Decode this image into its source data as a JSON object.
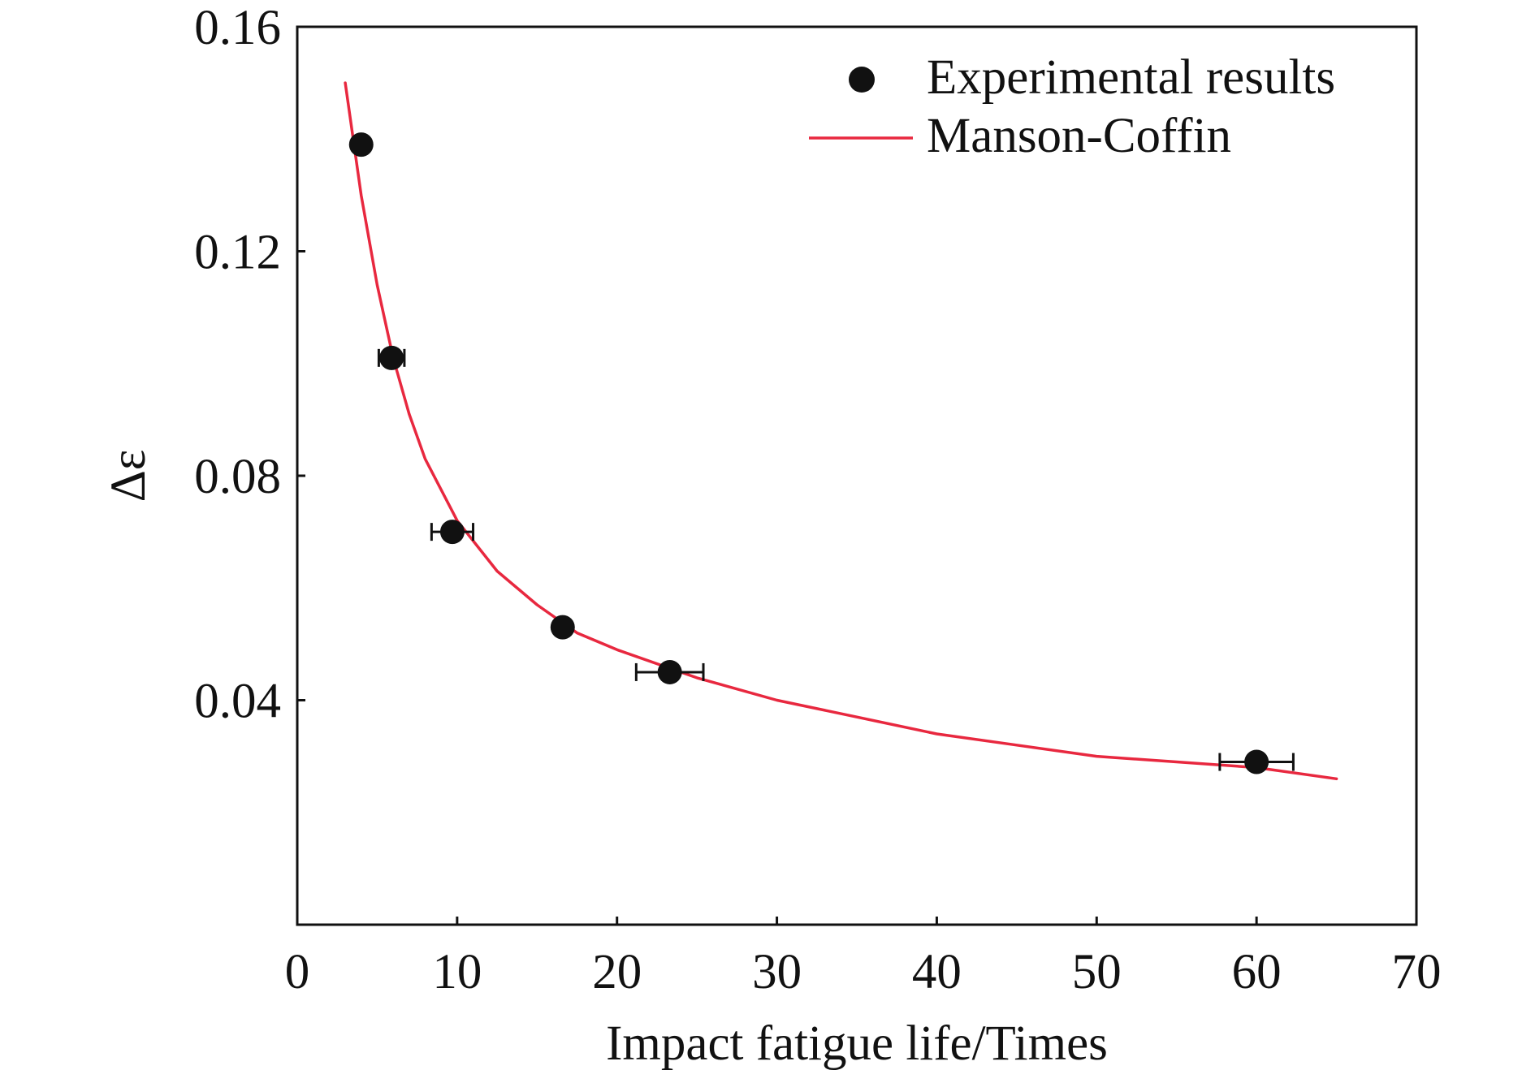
{
  "chart_data": {
    "type": "scatter",
    "title": "",
    "xlabel": "Impact fatigue life/Times",
    "ylabel": "Δε",
    "xlim": [
      0,
      70
    ],
    "ylim": [
      0,
      0.16
    ],
    "x_ticks": [
      {
        "value": 0,
        "label": "0"
      },
      {
        "value": 10,
        "label": "10"
      },
      {
        "value": 20,
        "label": "20"
      },
      {
        "value": 30,
        "label": "30"
      },
      {
        "value": 40,
        "label": "40"
      },
      {
        "value": 50,
        "label": "50"
      },
      {
        "value": 60,
        "label": "60"
      },
      {
        "value": 70,
        "label": "70"
      }
    ],
    "y_ticks": [
      {
        "value": 0.04,
        "label": "0.04"
      },
      {
        "value": 0.08,
        "label": "0.08"
      },
      {
        "value": 0.12,
        "label": "0.12"
      },
      {
        "value": 0.16,
        "label": "0.16"
      }
    ],
    "grid": false,
    "legend_position": "top-right",
    "series": [
      {
        "name": "Experimental results",
        "kind": "scatter",
        "color": "#111111",
        "points": [
          {
            "x": 4.0,
            "y": 0.139,
            "xerr": 0.3
          },
          {
            "x": 5.9,
            "y": 0.101,
            "xerr": 0.8
          },
          {
            "x": 9.7,
            "y": 0.07,
            "xerr": 1.3
          },
          {
            "x": 16.6,
            "y": 0.053,
            "xerr": 0.0
          },
          {
            "x": 23.3,
            "y": 0.045,
            "xerr": 2.1
          },
          {
            "x": 60.0,
            "y": 0.029,
            "xerr": 2.3
          }
        ]
      },
      {
        "name": "Manson-Coffin",
        "kind": "line",
        "color": "#e8283f",
        "points": [
          {
            "x": 3.0,
            "y": 0.15
          },
          {
            "x": 3.5,
            "y": 0.14
          },
          {
            "x": 4.0,
            "y": 0.13
          },
          {
            "x": 5.0,
            "y": 0.114
          },
          {
            "x": 6.0,
            "y": 0.101
          },
          {
            "x": 7.0,
            "y": 0.091
          },
          {
            "x": 8.0,
            "y": 0.083
          },
          {
            "x": 10.0,
            "y": 0.072
          },
          {
            "x": 12.5,
            "y": 0.063
          },
          {
            "x": 15.0,
            "y": 0.057
          },
          {
            "x": 17.5,
            "y": 0.052
          },
          {
            "x": 20.0,
            "y": 0.049
          },
          {
            "x": 25.0,
            "y": 0.044
          },
          {
            "x": 30.0,
            "y": 0.04
          },
          {
            "x": 35.0,
            "y": 0.037
          },
          {
            "x": 40.0,
            "y": 0.034
          },
          {
            "x": 45.0,
            "y": 0.032
          },
          {
            "x": 50.0,
            "y": 0.03
          },
          {
            "x": 55.0,
            "y": 0.029
          },
          {
            "x": 60.0,
            "y": 0.028
          },
          {
            "x": 65.0,
            "y": 0.026
          }
        ]
      }
    ]
  }
}
